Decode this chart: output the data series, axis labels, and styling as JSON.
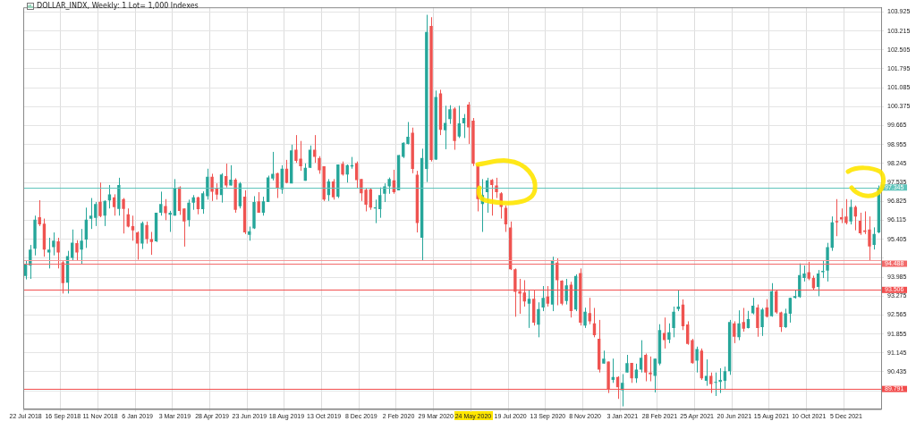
{
  "chart_data": {
    "type": "candlestick",
    "title": "DOLLAR_INDX, Weekly: 1 Lot= 1,000 Indexes",
    "categories": [
      "22 Jul 2018",
      null,
      null,
      null,
      null,
      null,
      null,
      null,
      "16 Sep 2018",
      null,
      null,
      null,
      null,
      null,
      null,
      null,
      "11 Nov 2018",
      null,
      null,
      null,
      null,
      null,
      null,
      null,
      "6 Jan 2019",
      null,
      null,
      null,
      null,
      null,
      null,
      null,
      "3 Mar 2019",
      null,
      null,
      null,
      null,
      null,
      null,
      null,
      "28 Apr 2019",
      null,
      null,
      null,
      null,
      null,
      null,
      null,
      "23 Jun 2019",
      null,
      null,
      null,
      null,
      null,
      null,
      null,
      "18 Aug 2019",
      null,
      null,
      null,
      null,
      null,
      null,
      null,
      "13 Oct 2019",
      null,
      null,
      null,
      null,
      null,
      null,
      null,
      "8 Dec 2019",
      null,
      null,
      null,
      null,
      null,
      null,
      null,
      "2 Feb 2020",
      null,
      null,
      null,
      null,
      null,
      null,
      null,
      "29 Mar 2020",
      null,
      null,
      null,
      null,
      null,
      null,
      null,
      "24 May 2020",
      null,
      null,
      null,
      null,
      null,
      null,
      null,
      "19 Jul 2020",
      null,
      null,
      null,
      null,
      null,
      null,
      null,
      "13 Sep 2020",
      null,
      null,
      null,
      null,
      null,
      null,
      null,
      "8 Nov 2020",
      null,
      null,
      null,
      null,
      null,
      null,
      null,
      "3 Jan 2021",
      null,
      null,
      null,
      null,
      null,
      null,
      null,
      "28 Feb 2021",
      null,
      null,
      null,
      null,
      null,
      null,
      null,
      "25 Apr 2021",
      null,
      null,
      null,
      null,
      null,
      null,
      null,
      "20 Jun 2021",
      null,
      null,
      null,
      null,
      null,
      null,
      null,
      "15 Aug 2021",
      null,
      null,
      null,
      null,
      null,
      null,
      null,
      "10 Oct 2021",
      null,
      null,
      null,
      null,
      null,
      null,
      null,
      "5 Dec 2021",
      null,
      null,
      null,
      null,
      null,
      null,
      null
    ],
    "ohlc": [
      [
        94.03,
        94.6,
        93.9,
        94.47
      ],
      [
        94.42,
        95.19,
        93.92,
        95.02
      ],
      [
        95.05,
        96.29,
        94.8,
        96.14
      ],
      [
        96.23,
        96.87,
        95.9,
        95.96
      ],
      [
        95.99,
        96.18,
        94.75,
        95.02
      ],
      [
        94.91,
        95.46,
        94.31,
        95.02
      ],
      [
        95.11,
        95.66,
        94.8,
        95.35
      ],
      [
        95.33,
        95.46,
        94.31,
        94.91
      ],
      [
        94.54,
        94.6,
        93.37,
        93.76
      ],
      [
        93.78,
        94.97,
        93.37,
        94.77
      ],
      [
        94.71,
        95.77,
        94.6,
        95.28
      ],
      [
        95.26,
        95.37,
        94.6,
        94.91
      ],
      [
        95.02,
        95.79,
        94.47,
        95.35
      ],
      [
        95.39,
        96.59,
        95.08,
        96.14
      ],
      [
        96.17,
        96.95,
        95.79,
        96.29
      ],
      [
        96.21,
        96.8,
        95.9,
        96.73
      ],
      [
        96.81,
        97.53,
        96.23,
        96.27
      ],
      [
        96.29,
        96.86,
        95.9,
        96.84
      ],
      [
        96.86,
        97.44,
        96.56,
        97.09
      ],
      [
        96.98,
        97.09,
        96.29,
        96.61
      ],
      [
        96.54,
        97.71,
        96.29,
        97.44
      ],
      [
        96.91,
        96.95,
        95.62,
        96.54
      ],
      [
        96.34,
        96.56,
        95.85,
        95.88
      ],
      [
        95.9,
        96.29,
        95.35,
        95.74
      ],
      [
        95.66,
        95.7,
        94.64,
        95.24
      ],
      [
        95.24,
        96.07,
        95.04,
        96.01
      ],
      [
        95.94,
        96.07,
        95.24,
        95.41
      ],
      [
        95.41,
        95.68,
        94.82,
        95.3
      ],
      [
        95.33,
        96.4,
        95.3,
        96.4
      ],
      [
        96.4,
        97.19,
        96.29,
        96.73
      ],
      [
        96.65,
        96.91,
        96.12,
        96.38
      ],
      [
        96.32,
        96.47,
        95.68,
        96.4
      ],
      [
        96.29,
        97.66,
        96.29,
        97.31
      ],
      [
        97.35,
        97.39,
        96.32,
        96.47
      ],
      [
        96.56,
        96.56,
        95.13,
        96.07
      ],
      [
        96.12,
        96.89,
        95.88,
        96.78
      ],
      [
        96.78,
        97.06,
        96.51,
        96.98
      ],
      [
        96.98,
        97.0,
        96.34,
        96.53
      ],
      [
        96.53,
        97.2,
        96.36,
        97.13
      ],
      [
        97.02,
        98.05,
        96.89,
        97.75
      ],
      [
        97.75,
        97.86,
        96.84,
        97.19
      ],
      [
        97.31,
        97.5,
        96.89,
        97.08
      ],
      [
        97.06,
        97.88,
        96.78,
        97.83
      ],
      [
        97.77,
        98.24,
        97.35,
        97.42
      ],
      [
        97.42,
        98.18,
        97.42,
        97.64
      ],
      [
        97.64,
        97.69,
        96.4,
        96.51
      ],
      [
        96.64,
        97.55,
        96.56,
        97.5
      ],
      [
        97.0,
        97.24,
        95.6,
        95.66
      ],
      [
        95.57,
        95.88,
        95.35,
        95.7
      ],
      [
        95.81,
        97.02,
        95.79,
        96.8
      ],
      [
        96.83,
        97.17,
        96.4,
        96.4
      ],
      [
        96.4,
        97.0,
        96.29,
        96.83
      ],
      [
        96.8,
        97.79,
        96.8,
        97.72
      ],
      [
        97.68,
        98.68,
        97.61,
        97.86
      ],
      [
        97.88,
        97.9,
        96.95,
        97.33
      ],
      [
        97.28,
        98.18,
        97.11,
        98.05
      ],
      [
        98.05,
        98.38,
        97.5,
        97.52
      ],
      [
        97.5,
        98.95,
        97.5,
        98.74
      ],
      [
        98.76,
        99.31,
        98.27,
        98.34
      ],
      [
        98.43,
        99.09,
        97.97,
        98.14
      ],
      [
        97.6,
        98.25,
        97.6,
        98.08
      ],
      [
        98.08,
        98.92,
        98.08,
        98.76
      ],
      [
        98.76,
        99.31,
        98.27,
        98.49
      ],
      [
        98.45,
        98.52,
        97.86,
        97.99
      ],
      [
        98.14,
        98.14,
        96.84,
        96.89
      ],
      [
        97.06,
        97.66,
        96.84,
        97.57
      ],
      [
        97.57,
        97.66,
        96.89,
        96.98
      ],
      [
        97.0,
        98.21,
        96.95,
        98.21
      ],
      [
        98.23,
        98.32,
        97.79,
        97.83
      ],
      [
        97.83,
        98.21,
        97.53,
        98.18
      ],
      [
        98.13,
        98.49,
        98.05,
        98.18
      ],
      [
        98.26,
        98.32,
        97.31,
        97.62
      ],
      [
        97.66,
        97.66,
        96.84,
        97.13
      ],
      [
        97.26,
        97.33,
        96.45,
        96.7
      ],
      [
        97.28,
        97.33,
        96.51,
        96.59
      ],
      [
        96.56,
        96.89,
        96.01,
        96.6
      ],
      [
        96.53,
        97.35,
        96.21,
        97.06
      ],
      [
        97.11,
        97.5,
        96.8,
        97.39
      ],
      [
        97.39,
        97.72,
        97.11,
        97.66
      ],
      [
        97.61,
        98.01,
        97.11,
        97.17
      ],
      [
        97.24,
        98.56,
        97.24,
        98.56
      ],
      [
        98.49,
        99.04,
        98.45,
        99.02
      ],
      [
        98.98,
        99.8,
        98.96,
        99.25
      ],
      [
        99.4,
        99.59,
        97.88,
        98.04
      ],
      [
        97.82,
        97.97,
        95.66,
        96.01
      ],
      [
        95.46,
        98.8,
        94.61,
        98.45
      ],
      [
        98.04,
        103.82,
        97.55,
        103.18
      ],
      [
        103.4,
        103.73,
        98.32,
        98.38
      ],
      [
        98.39,
        100.98,
        98.38,
        100.74
      ],
      [
        100.87,
        101.01,
        99.31,
        99.51
      ],
      [
        99.49,
        100.41,
        98.78,
        99.77
      ],
      [
        99.91,
        100.43,
        99.73,
        100.28
      ],
      [
        100.3,
        100.35,
        98.76,
        99.09
      ],
      [
        99.26,
        100.41,
        99.2,
        99.75
      ],
      [
        99.75,
        100.1,
        99.2,
        99.95
      ],
      [
        100.45,
        100.55,
        98.98,
        99.6
      ],
      [
        99.85,
        99.95,
        98.15,
        98.23
      ],
      [
        98.21,
        98.21,
        96.45,
        96.91
      ],
      [
        96.73,
        97.66,
        95.68,
        97.06
      ],
      [
        97.17,
        97.71,
        96.4,
        97.61
      ],
      [
        97.63,
        97.66,
        96.29,
        97.44
      ],
      [
        97.42,
        97.71,
        96.95,
        97.17
      ],
      [
        97.13,
        97.17,
        96.18,
        96.62
      ],
      [
        96.58,
        96.67,
        95.68,
        95.96
      ],
      [
        95.85,
        96.07,
        94.25,
        94.28
      ],
      [
        94.28,
        94.31,
        92.5,
        93.43
      ],
      [
        93.46,
        93.92,
        92.61,
        93.37
      ],
      [
        93.41,
        93.87,
        92.88,
        93.07
      ],
      [
        92.99,
        93.48,
        92.08,
        93.17
      ],
      [
        93.17,
        93.48,
        92.17,
        92.28
      ],
      [
        92.2,
        93.04,
        91.73,
        92.79
      ],
      [
        92.85,
        93.65,
        92.71,
        93.21
      ],
      [
        93.26,
        93.65,
        92.88,
        92.99
      ],
      [
        92.96,
        94.75,
        92.71,
        94.61
      ],
      [
        94.53,
        94.69,
        92.93,
        93.87
      ],
      [
        93.85,
        93.87,
        92.93,
        92.99
      ],
      [
        93.09,
        93.92,
        92.96,
        93.68
      ],
      [
        93.7,
        93.81,
        92.47,
        92.71
      ],
      [
        92.77,
        94.09,
        92.71,
        94.03
      ],
      [
        94.14,
        94.31,
        92.17,
        92.28
      ],
      [
        92.17,
        92.84,
        92.08,
        92.69
      ],
      [
        92.64,
        93.21,
        92.22,
        92.33
      ],
      [
        92.25,
        92.83,
        91.73,
        91.81
      ],
      [
        91.67,
        92.38,
        90.41,
        90.52
      ],
      [
        90.74,
        91.23,
        90.74,
        90.93
      ],
      [
        90.82,
        90.82,
        89.64,
        89.8
      ],
      [
        90.13,
        90.93,
        90.02,
        90.24
      ],
      [
        90.24,
        90.27,
        89.42,
        89.86
      ],
      [
        89.75,
        90.35,
        89.14,
        90.02
      ],
      [
        90.41,
        91.07,
        90.41,
        90.76
      ],
      [
        90.77,
        90.77,
        90.02,
        90.19
      ],
      [
        90.19,
        90.74,
        90.02,
        90.52
      ],
      [
        90.52,
        91.62,
        90.41,
        90.96
      ],
      [
        91.07,
        91.12,
        90.08,
        90.41
      ],
      [
        90.41,
        91.01,
        90.08,
        90.34
      ],
      [
        90.28,
        90.93,
        89.66,
        90.93
      ],
      [
        90.74,
        92.22,
        90.68,
        92.0
      ],
      [
        91.89,
        92.47,
        91.31,
        91.62
      ],
      [
        91.64,
        92.25,
        91.51,
        91.92
      ],
      [
        92.08,
        92.88,
        91.73,
        92.69
      ],
      [
        92.79,
        93.48,
        92.71,
        92.88
      ],
      [
        92.96,
        93.15,
        92.0,
        92.14
      ],
      [
        92.21,
        92.33,
        91.45,
        91.48
      ],
      [
        91.62,
        91.67,
        90.74,
        90.76
      ],
      [
        90.85,
        91.38,
        90.41,
        91.29
      ],
      [
        91.23,
        91.31,
        90.13,
        90.19
      ],
      [
        90.1,
        90.9,
        89.91,
        90.28
      ],
      [
        90.28,
        90.41,
        89.64,
        89.97
      ],
      [
        90.02,
        90.41,
        89.53,
        90.06
      ],
      [
        90.06,
        90.57,
        89.64,
        90.13
      ],
      [
        90.1,
        90.63,
        89.8,
        90.46
      ],
      [
        90.46,
        92.38,
        90.32,
        92.3
      ],
      [
        92.25,
        92.33,
        91.51,
        91.75
      ],
      [
        91.73,
        92.74,
        91.62,
        92.25
      ],
      [
        92.3,
        92.83,
        91.94,
        92.05
      ],
      [
        92.08,
        92.72,
        92.06,
        92.41
      ],
      [
        92.63,
        93.21,
        92.59,
        92.91
      ],
      [
        92.85,
        92.96,
        91.75,
        92.08
      ],
      [
        92.11,
        92.83,
        91.78,
        92.77
      ],
      [
        92.85,
        93.16,
        92.47,
        92.5
      ],
      [
        92.52,
        93.76,
        92.5,
        93.46
      ],
      [
        93.46,
        93.51,
        92.61,
        92.66
      ],
      [
        92.66,
        92.69,
        91.93,
        92.11
      ],
      [
        92.11,
        92.8,
        92.08,
        92.63
      ],
      [
        92.61,
        93.21,
        92.28,
        93.21
      ],
      [
        93.21,
        93.51,
        93.18,
        93.27
      ],
      [
        93.24,
        94.5,
        93.21,
        94.06
      ],
      [
        93.95,
        94.42,
        93.82,
        94.12
      ],
      [
        94.17,
        94.56,
        93.87,
        93.93
      ],
      [
        93.95,
        94.04,
        93.49,
        93.57
      ],
      [
        93.62,
        94.25,
        93.27,
        94.12
      ],
      [
        94.17,
        94.61,
        93.95,
        94.22
      ],
      [
        94.23,
        95.27,
        93.82,
        95.11
      ],
      [
        95.08,
        96.26,
        94.97,
        96.04
      ],
      [
        96.09,
        96.91,
        95.52,
        96.04
      ],
      [
        96.23,
        96.56,
        96.01,
        96.15
      ],
      [
        96.26,
        96.91,
        95.96,
        96.01
      ],
      [
        96.07,
        96.89,
        95.96,
        96.62
      ],
      [
        96.62,
        96.67,
        95.74,
        96.26
      ],
      [
        96.1,
        96.4,
        95.57,
        95.63
      ],
      [
        95.74,
        96.45,
        95.6,
        95.68
      ],
      [
        95.77,
        96.26,
        94.61,
        95.13
      ],
      [
        95.19,
        95.85,
        95.02,
        95.6
      ],
      [
        95.66,
        97.42,
        95.63,
        97.33
      ]
    ],
    "colors": [
      "#26a69a",
      "#26a69a",
      "#26a69a",
      "#ef5350",
      "#ef5350",
      "#26a69a",
      "#26a69a",
      "#ef5350",
      "#ef5350",
      "#26a69a",
      "#26a69a",
      "#ef5350",
      "#26a69a",
      "#26a69a",
      "#26a69a",
      "#26a69a",
      "#ef5350",
      "#26a69a",
      "#26a69a",
      "#ef5350",
      "#26a69a",
      "#ef5350",
      "#ef5350",
      "#ef5350",
      "#ef5350",
      "#26a69a",
      "#ef5350",
      "#ef5350",
      "#26a69a",
      "#26a69a",
      "#ef5350",
      "#26a69a",
      "#26a69a",
      "#ef5350",
      "#ef5350",
      "#26a69a",
      "#26a69a",
      "#ef5350",
      "#26a69a",
      "#26a69a",
      "#ef5350",
      "#ef5350",
      "#26a69a",
      "#ef5350",
      "#26a69a",
      "#ef5350",
      "#26a69a",
      "#ef5350",
      "#26a69a",
      "#26a69a",
      "#ef5350",
      "#26a69a",
      "#26a69a",
      "#26a69a",
      "#ef5350",
      "#26a69a",
      "#ef5350",
      "#26a69a",
      "#ef5350",
      "#ef5350",
      "#26a69a",
      "#26a69a",
      "#ef5350",
      "#ef5350",
      "#ef5350",
      "#26a69a",
      "#ef5350",
      "#26a69a",
      "#ef5350",
      "#26a69a",
      "#26a69a",
      "#ef5350",
      "#ef5350",
      "#ef5350",
      "#ef5350",
      "#26a69a",
      "#26a69a",
      "#26a69a",
      "#26a69a",
      "#ef5350",
      "#26a69a",
      "#26a69a",
      "#26a69a",
      "#ef5350",
      "#ef5350",
      "#26a69a",
      "#26a69a",
      "#ef5350",
      "#26a69a",
      "#ef5350",
      "#26a69a",
      "#26a69a",
      "#ef5350",
      "#26a69a",
      "#26a69a",
      "#ef5350",
      "#ef5350",
      "#ef5350",
      "#26a69a",
      "#26a69a",
      "#ef5350",
      "#ef5350",
      "#ef5350",
      "#ef5350",
      "#ef5350",
      "#ef5350",
      "#ef5350",
      "#ef5350",
      "#26a69a",
      "#ef5350",
      "#26a69a",
      "#26a69a",
      "#ef5350",
      "#26a69a",
      "#ef5350",
      "#ef5350",
      "#26a69a",
      "#ef5350",
      "#26a69a",
      "#ef5350",
      "#26a69a",
      "#ef5350",
      "#ef5350",
      "#ef5350",
      "#26a69a",
      "#ef5350",
      "#26a69a",
      "#ef5350",
      "#26a69a",
      "#26a69a",
      "#ef5350",
      "#26a69a",
      "#26a69a",
      "#ef5350",
      "#ef5350",
      "#26a69a",
      "#26a69a",
      "#ef5350",
      "#26a69a",
      "#26a69a",
      "#26a69a",
      "#ef5350",
      "#ef5350",
      "#ef5350",
      "#26a69a",
      "#ef5350",
      "#26a69a",
      "#ef5350",
      "#26a69a",
      "#26a69a",
      "#26a69a",
      "#26a69a",
      "#ef5350",
      "#26a69a",
      "#ef5350",
      "#26a69a",
      "#26a69a",
      "#ef5350",
      "#26a69a",
      "#ef5350",
      "#26a69a",
      "#ef5350",
      "#ef5350",
      "#26a69a",
      "#26a69a",
      "#26a69a",
      "#26a69a",
      "#26a69a",
      "#ef5350",
      "#ef5350",
      "#26a69a",
      "#26a69a",
      "#26a69a",
      "#26a69a",
      "#ef5350",
      "#ef5350",
      "#ef5350",
      "#26a69a",
      "#ef5350",
      "#ef5350",
      "#ef5350",
      "#ef5350",
      "#26a69a",
      "#26a69a"
    ],
    "ylim": [
      89.04,
      104.1
    ],
    "yticks": [
      103.925,
      103.215,
      102.505,
      101.795,
      101.085,
      100.375,
      99.665,
      98.955,
      98.245,
      97.535,
      96.825,
      96.115,
      95.405,
      {
        "value": 94.695,
        "label": null
      },
      93.985,
      93.275,
      92.565,
      91.855,
      91.145,
      90.435,
      {
        "value": 89.725,
        "label": null
      }
    ],
    "grid": true,
    "ref_lines": [
      {
        "axis": "y",
        "value": 97.345,
        "label": "97.345",
        "color": "#5fc4bb"
      },
      {
        "axis": "y",
        "value": 94.61,
        "label": null,
        "color": "#f49a9a"
      },
      {
        "axis": "y",
        "value": 94.488,
        "label": "94.488",
        "color": "#f26a6a"
      },
      {
        "axis": "y",
        "value": 93.506,
        "label": "93.506",
        "color": "#f24f4f"
      },
      {
        "axis": "y",
        "value": 89.791,
        "label": "89.791",
        "color": "#f24f4f"
      }
    ]
  }
}
